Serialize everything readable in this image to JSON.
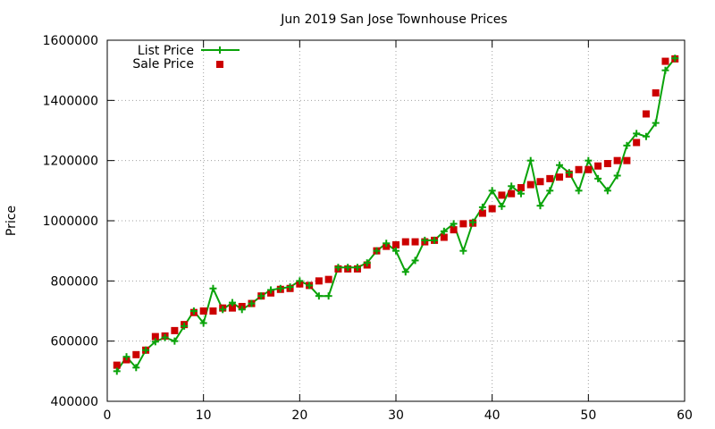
{
  "chart_data": {
    "type": "line",
    "title": "Jun 2019 San Jose Townhouse Prices",
    "xlabel": "",
    "ylabel": "Price",
    "xlim": [
      0,
      60
    ],
    "ylim": [
      400000,
      1600000
    ],
    "x_ticks": [
      0,
      10,
      20,
      30,
      40,
      50,
      60
    ],
    "y_ticks": [
      400000,
      600000,
      800000,
      1000000,
      1200000,
      1400000,
      1600000
    ],
    "grid": true,
    "legend_position": "top-left",
    "series": [
      {
        "name": "List Price",
        "style": "line-with-plus-markers",
        "color": "#0aa30a",
        "x": [
          1,
          2,
          3,
          4,
          5,
          6,
          7,
          8,
          9,
          10,
          11,
          12,
          13,
          14,
          15,
          16,
          17,
          18,
          19,
          20,
          21,
          22,
          23,
          24,
          25,
          26,
          27,
          28,
          29,
          30,
          31,
          32,
          33,
          34,
          35,
          36,
          37,
          38,
          39,
          40,
          41,
          42,
          43,
          44,
          45,
          46,
          47,
          48,
          49,
          50,
          51,
          52,
          53,
          54,
          55,
          56,
          57,
          58,
          59
        ],
        "y": [
          500000,
          548000,
          512000,
          570000,
          598000,
          612000,
          600000,
          650000,
          700000,
          660000,
          775000,
          705000,
          728000,
          705000,
          725000,
          750000,
          770000,
          775000,
          780000,
          800000,
          785000,
          750000,
          750000,
          845000,
          845000,
          845000,
          860000,
          900000,
          925000,
          900000,
          830000,
          868000,
          935000,
          935000,
          965000,
          990000,
          900000,
          995000,
          1045000,
          1100000,
          1048000,
          1115000,
          1090000,
          1200000,
          1050000,
          1100000,
          1185000,
          1160000,
          1100000,
          1200000,
          1140000,
          1100000,
          1150000,
          1250000,
          1290000,
          1280000,
          1325000,
          1500000,
          1540000
        ]
      },
      {
        "name": "Sale Price",
        "style": "square-markers",
        "color": "#cc0000",
        "x": [
          1,
          2,
          3,
          4,
          5,
          6,
          7,
          8,
          9,
          10,
          11,
          12,
          13,
          14,
          15,
          16,
          17,
          18,
          19,
          20,
          21,
          22,
          23,
          24,
          25,
          26,
          27,
          28,
          29,
          30,
          31,
          32,
          33,
          34,
          35,
          36,
          37,
          38,
          39,
          40,
          41,
          42,
          43,
          44,
          45,
          46,
          47,
          48,
          49,
          50,
          51,
          52,
          53,
          54,
          55,
          56,
          57,
          58,
          59
        ],
        "y": [
          520000,
          538000,
          555000,
          570000,
          615000,
          617000,
          635000,
          655000,
          695000,
          700000,
          700000,
          710000,
          710000,
          715000,
          725000,
          750000,
          760000,
          772000,
          775000,
          790000,
          785000,
          800000,
          805000,
          840000,
          840000,
          840000,
          853000,
          900000,
          915000,
          920000,
          930000,
          930000,
          930000,
          935000,
          945000,
          970000,
          990000,
          992000,
          1025000,
          1040000,
          1085000,
          1090000,
          1110000,
          1120000,
          1130000,
          1140000,
          1145000,
          1155000,
          1170000,
          1170000,
          1182000,
          1190000,
          1200000,
          1200000,
          1260000,
          1355000,
          1425000,
          1530000,
          1538000
        ]
      }
    ]
  }
}
